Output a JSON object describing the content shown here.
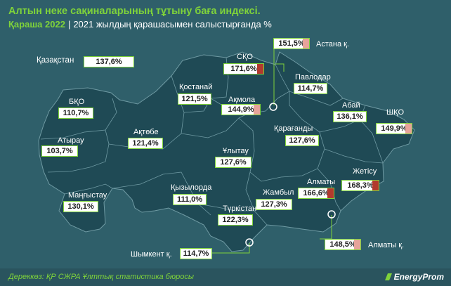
{
  "title": "Алтын неке сақиналарының тұтыну баға индексі.",
  "subtitle_period": "Қараша 2022",
  "subtitle_separator": "|",
  "subtitle_comparison": "2021 жылдың қарашасымен салыстырғанда %",
  "colors": {
    "background": "#2f5f6a",
    "map_fill": "#1f4a55",
    "region_border": "#6f9aa3",
    "accent_green": "#7fd33a",
    "highlight_red": "#b23a2e",
    "highlight_pink": "#e7a39a"
  },
  "regions": [
    {
      "id": "kazakhstan",
      "name": "Қазақстан",
      "value": "137,6%",
      "highlight": "none"
    },
    {
      "id": "sko",
      "name": "СҚО",
      "value": "171,6%",
      "highlight": "red"
    },
    {
      "id": "astana",
      "name": "Астана қ.",
      "value": "151,5%",
      "highlight": "pink"
    },
    {
      "id": "pavlodar",
      "name": "Павлодар",
      "value": "114,7%",
      "highlight": "none"
    },
    {
      "id": "kostanay",
      "name": "Қостанай",
      "value": "121,5%",
      "highlight": "none"
    },
    {
      "id": "akmola",
      "name": "Ақмола",
      "value": "144,9%",
      "highlight": "pink"
    },
    {
      "id": "bko",
      "name": "БҚО",
      "value": "110,7%",
      "highlight": "none"
    },
    {
      "id": "abay",
      "name": "Абай",
      "value": "136,1%",
      "highlight": "none"
    },
    {
      "id": "shko",
      "name": "ШҚО",
      "value": "149,9%",
      "highlight": "pink"
    },
    {
      "id": "aktobe",
      "name": "Ақтөбе",
      "value": "121,4%",
      "highlight": "none"
    },
    {
      "id": "atyrau",
      "name": "Атырау",
      "value": "103,7%",
      "highlight": "none"
    },
    {
      "id": "karaganda",
      "name": "Қарағанды",
      "value": "127,6%",
      "highlight": "none"
    },
    {
      "id": "ulytau",
      "name": "Ұлытау",
      "value": "127,6%",
      "highlight": "none"
    },
    {
      "id": "zhetisu",
      "name": "Жетісу",
      "value": "168,3%",
      "highlight": "red"
    },
    {
      "id": "almaty_obl",
      "name": "Алматы",
      "value": "166,6%",
      "highlight": "red"
    },
    {
      "id": "kyzylorda",
      "name": "Қызылорда",
      "value": "111,0%",
      "highlight": "none"
    },
    {
      "id": "zhambyl",
      "name": "Жамбыл",
      "value": "127,3%",
      "highlight": "none"
    },
    {
      "id": "mangystau",
      "name": "Маңғыстау",
      "value": "130,1%",
      "highlight": "none"
    },
    {
      "id": "turkistan",
      "name": "Түркістан",
      "value": "122,3%",
      "highlight": "none"
    },
    {
      "id": "almaty_city",
      "name": "Алматы қ.",
      "value": "148,5%",
      "highlight": "pink"
    },
    {
      "id": "shymkent",
      "name": "Шымкент қ.",
      "value": "114,7%",
      "highlight": "none"
    }
  ],
  "source": "Дереккөз: ҚР СЖРА Ұлттық статистика бюросы",
  "logo_text": "EnergyProm"
}
